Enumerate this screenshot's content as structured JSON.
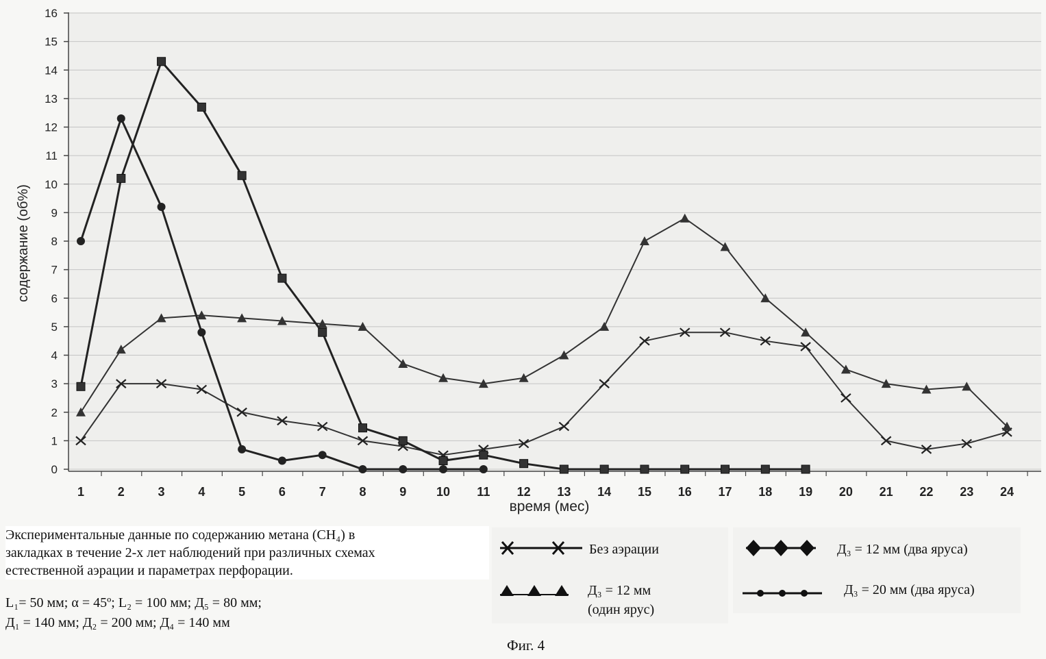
{
  "chart_data": {
    "type": "line",
    "xlabel": "время (мес)",
    "ylabel": "содержание (об%)",
    "xlim": [
      1,
      24
    ],
    "ylim": [
      0,
      16
    ],
    "x_ticks": [
      "1",
      "2",
      "3",
      "4",
      "5",
      "6",
      "7",
      "8",
      "9",
      "10",
      "11",
      "12",
      "13",
      "14",
      "15",
      "16",
      "17",
      "18",
      "19",
      "20",
      "21",
      "22",
      "23",
      "24"
    ],
    "y_ticks": [
      "0",
      "1",
      "2",
      "3",
      "4",
      "5",
      "6",
      "7",
      "8",
      "9",
      "10",
      "11",
      "12",
      "13",
      "14",
      "15",
      "16"
    ],
    "grid": true,
    "series": [
      {
        "name": "Без аэрации",
        "marker": "x",
        "color": "#333333",
        "x": [
          1,
          2,
          3,
          4,
          5,
          6,
          7,
          8,
          9,
          10,
          11,
          12,
          13,
          14,
          15,
          16,
          17,
          18,
          19,
          20,
          21,
          22,
          23,
          24
        ],
        "values": [
          1.0,
          3.0,
          3.0,
          2.8,
          2.0,
          1.7,
          1.5,
          1.0,
          0.8,
          0.5,
          0.7,
          0.9,
          1.5,
          3.0,
          4.5,
          4.8,
          4.8,
          4.5,
          4.3,
          2.5,
          1.0,
          0.7,
          0.9,
          1.3
        ]
      },
      {
        "name": "Д3 = 12 мм (один ярус)",
        "marker": "triangle",
        "color": "#333333",
        "x": [
          1,
          2,
          3,
          4,
          5,
          6,
          7,
          8,
          9,
          10,
          11,
          12,
          13,
          14,
          15,
          16,
          17,
          18,
          19,
          20,
          21,
          22,
          23,
          24
        ],
        "values": [
          2.0,
          4.2,
          5.3,
          5.4,
          5.3,
          5.2,
          5.1,
          5.0,
          3.7,
          3.2,
          3.0,
          3.2,
          4.0,
          5.0,
          8.0,
          8.8,
          7.8,
          6.0,
          4.8,
          3.5,
          3.0,
          2.8,
          2.9,
          1.5
        ]
      },
      {
        "name": "Д3 = 12 мм (два яруса)",
        "marker": "square",
        "color": "#222222",
        "x": [
          1,
          2,
          3,
          4,
          5,
          6,
          7,
          8,
          9,
          10,
          11,
          12,
          13,
          14,
          15,
          16,
          17,
          18,
          19
        ],
        "values": [
          2.9,
          10.2,
          14.3,
          12.7,
          10.3,
          6.7,
          4.8,
          1.45,
          1.0,
          0.3,
          0.5,
          0.2,
          0.0,
          0.0,
          0.0,
          0.0,
          0.0,
          0.0,
          0.0
        ]
      },
      {
        "name": "Д3 = 20 мм (два яруса)",
        "marker": "circle",
        "color": "#222222",
        "x": [
          1,
          2,
          3,
          4,
          5,
          6,
          7,
          8,
          9,
          10,
          11
        ],
        "values": [
          8.0,
          12.3,
          9.2,
          4.8,
          0.7,
          0.3,
          0.5,
          0.0,
          0.0,
          0.0,
          0.0
        ]
      }
    ]
  },
  "caption": {
    "line1": "Экспериментальные данные по содержанию метана (CH₄) в",
    "line2": "закладках в течение 2-х лет наблюдений при различных схемах",
    "line3": " естественной аэрации и параметрах перфорации."
  },
  "params": {
    "line1": "L₁= 50 мм; α = 45º; L₂ = 100 мм; Д₅ = 80 мм;",
    "line2": "Д₁ = 140 мм; Д₂ = 200 мм; Д₄ = 140 мм"
  },
  "legend": {
    "no_aeration": "Без аэрации",
    "d12_one_a": "Д₃ = 12 мм",
    "d12_one_b": "(один ярус)",
    "d12_two": "Д₃ = 12 мм (два яруса)",
    "d20_two": "Д₃ = 20 мм (два яруса)"
  },
  "figure_label": "Фиг. 4"
}
